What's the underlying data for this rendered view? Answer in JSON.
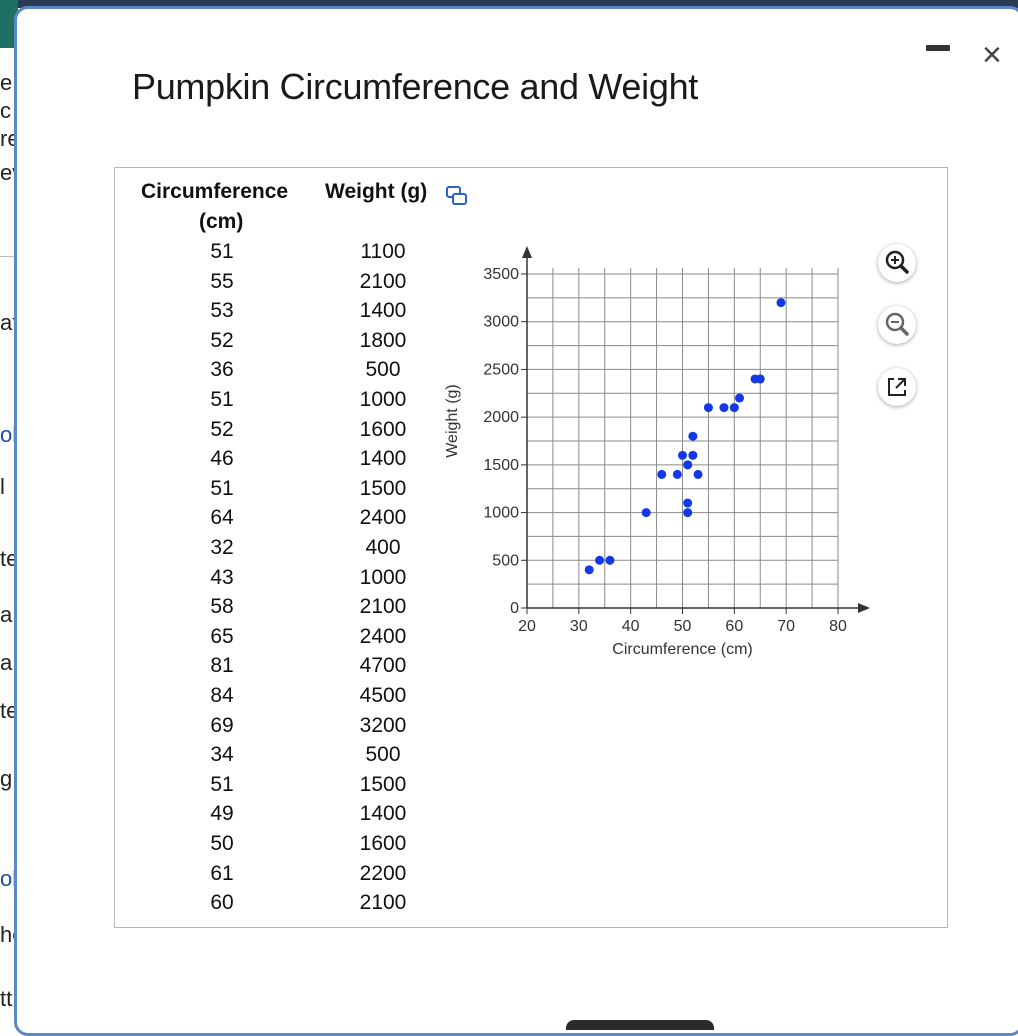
{
  "background": {
    "fragments": [
      "e",
      "c",
      "re",
      "ev",
      "at",
      "ol",
      "l",
      "te",
      "a",
      "a",
      "te",
      "g",
      "ol",
      "he",
      "tt"
    ]
  },
  "dialog": {
    "title": "Pumpkin Circumference and Weight",
    "minimize_label": "-",
    "close_label": "×"
  },
  "table": {
    "headers": {
      "circumference_line1": "Circumference",
      "circumference_line2": "(cm)",
      "weight": "Weight (g)"
    },
    "rows": [
      [
        "51",
        "1100"
      ],
      [
        "55",
        "2100"
      ],
      [
        "53",
        "1400"
      ],
      [
        "52",
        "1800"
      ],
      [
        "36",
        "500"
      ],
      [
        "51",
        "1000"
      ],
      [
        "52",
        "1600"
      ],
      [
        "46",
        "1400"
      ],
      [
        "51",
        "1500"
      ],
      [
        "64",
        "2400"
      ],
      [
        "32",
        "400"
      ],
      [
        "43",
        "1000"
      ],
      [
        "58",
        "2100"
      ],
      [
        "65",
        "2400"
      ],
      [
        "81",
        "4700"
      ],
      [
        "84",
        "4500"
      ],
      [
        "69",
        "3200"
      ],
      [
        "34",
        "500"
      ],
      [
        "51",
        "1500"
      ],
      [
        "49",
        "1400"
      ],
      [
        "50",
        "1600"
      ],
      [
        "61",
        "2200"
      ],
      [
        "60",
        "2100"
      ]
    ]
  },
  "icons": {
    "copy": "copy-icon",
    "zoom_in": "zoom-in-icon",
    "zoom_out": "zoom-out-icon",
    "popout": "external-link-icon"
  },
  "colors": {
    "point": "#1238e8",
    "grid": "#8a8a8a",
    "dialog_border": "#5b87c4"
  },
  "chart_data": {
    "type": "scatter",
    "xlabel": "Circumference (cm)",
    "ylabel": "Weight (g)",
    "xlim": [
      20,
      80
    ],
    "ylim": [
      0,
      3500
    ],
    "x_ticks": [
      20,
      30,
      40,
      50,
      60,
      70,
      80
    ],
    "y_ticks": [
      0,
      500,
      1000,
      1500,
      2000,
      2500,
      3000,
      3500
    ],
    "grid": true,
    "points": [
      {
        "x": 51,
        "y": 1100
      },
      {
        "x": 55,
        "y": 2100
      },
      {
        "x": 53,
        "y": 1400
      },
      {
        "x": 52,
        "y": 1800
      },
      {
        "x": 36,
        "y": 500
      },
      {
        "x": 51,
        "y": 1000
      },
      {
        "x": 52,
        "y": 1600
      },
      {
        "x": 46,
        "y": 1400
      },
      {
        "x": 51,
        "y": 1500
      },
      {
        "x": 64,
        "y": 2400
      },
      {
        "x": 32,
        "y": 400
      },
      {
        "x": 43,
        "y": 1000
      },
      {
        "x": 58,
        "y": 2100
      },
      {
        "x": 65,
        "y": 2400
      },
      {
        "x": 69,
        "y": 3200
      },
      {
        "x": 34,
        "y": 500
      },
      {
        "x": 51,
        "y": 1500
      },
      {
        "x": 49,
        "y": 1400
      },
      {
        "x": 50,
        "y": 1600
      },
      {
        "x": 61,
        "y": 2200
      },
      {
        "x": 60,
        "y": 2100
      }
    ]
  }
}
